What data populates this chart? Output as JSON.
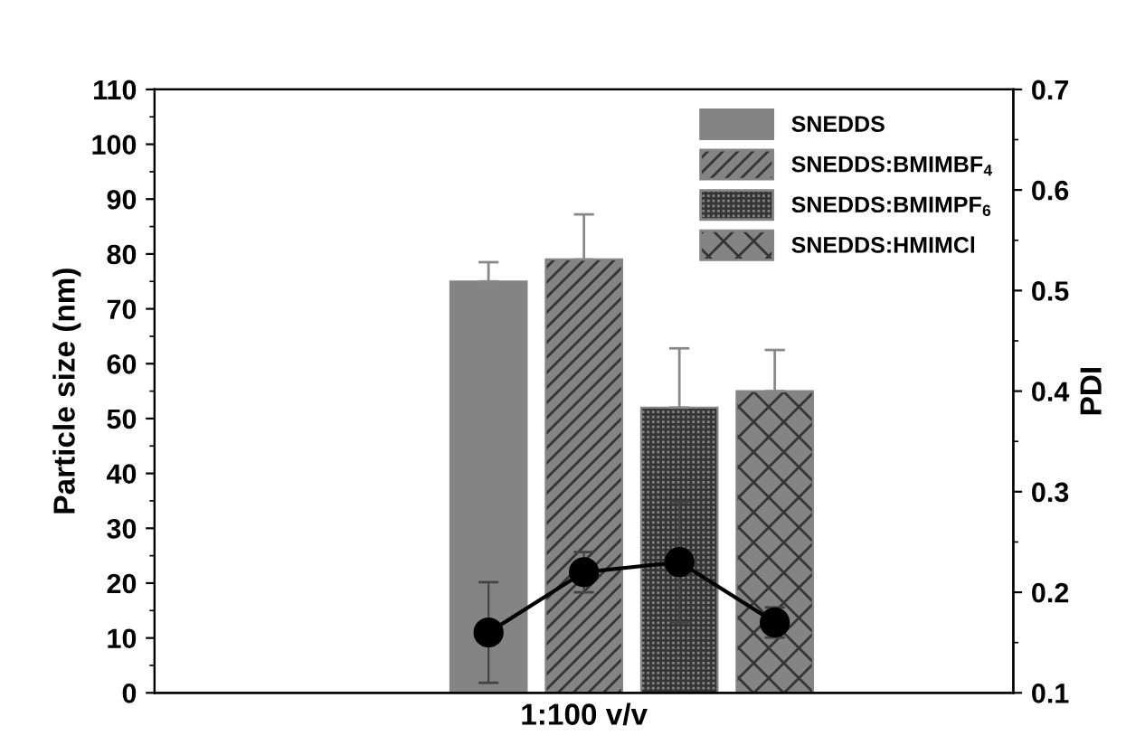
{
  "chart_data": {
    "type": "bar",
    "xlabel": "1:100 v/v",
    "ylabel": "Particle size (nm)",
    "y2label": "PDI",
    "categories": [
      null,
      null,
      null,
      null,
      null,
      null,
      null,
      null,
      null
    ],
    "series": [
      {
        "name": "SNEDDS",
        "color": "#848484",
        "values": [
          null,
          null,
          null,
          75,
          null,
          null,
          null,
          null,
          null
        ],
        "errors": [
          null,
          null,
          null,
          [
            75,
            78.5
          ],
          null,
          null,
          null,
          null,
          null
        ]
      },
      {
        "name": "SNEDDS:BMIMBF$_{4}$",
        "color": "#848484",
        "values": [
          null,
          null,
          null,
          null,
          79,
          null,
          null,
          null,
          null
        ],
        "errors": [
          null,
          null,
          null,
          null,
          [
            79,
            87.2
          ],
          null,
          null,
          null,
          null
        ]
      },
      {
        "name": "SNEDDS:BMIMPF$_{6}$",
        "color": "#848484",
        "values": [
          null,
          null,
          null,
          null,
          null,
          52,
          null,
          null,
          null
        ],
        "errors": [
          null,
          null,
          null,
          null,
          null,
          [
            52,
            62.8
          ],
          null,
          null,
          null
        ]
      },
      {
        "name": "SNEDDS:HMIMCl",
        "color": "#848484",
        "values": [
          null,
          null,
          null,
          null,
          null,
          null,
          55,
          null,
          null
        ],
        "errors": [
          null,
          null,
          null,
          null,
          null,
          null,
          [
            55,
            62.5
          ],
          null,
          null
        ]
      },
      {
        "type": "line",
        "axis": "y2",
        "color": "#000000",
        "marker": "circle",
        "values": [
          null,
          null,
          null,
          0.16,
          0.22,
          0.23,
          0.17,
          null,
          null
        ],
        "errors": [
          null,
          null,
          null,
          0.05,
          0.02,
          0.06,
          0.015,
          null,
          null
        ]
      }
    ],
    "ylim": [
      0,
      110
    ],
    "yticks": [
      0,
      10,
      20,
      30,
      40,
      50,
      60,
      70,
      80,
      90,
      100,
      110
    ],
    "y2lim": [
      0.1,
      0.7
    ],
    "y2ticks": [
      0.1,
      0.2,
      0.3,
      0.4,
      0.5,
      0.6,
      0.7
    ],
    "legend": "top right",
    "grid": false
  }
}
